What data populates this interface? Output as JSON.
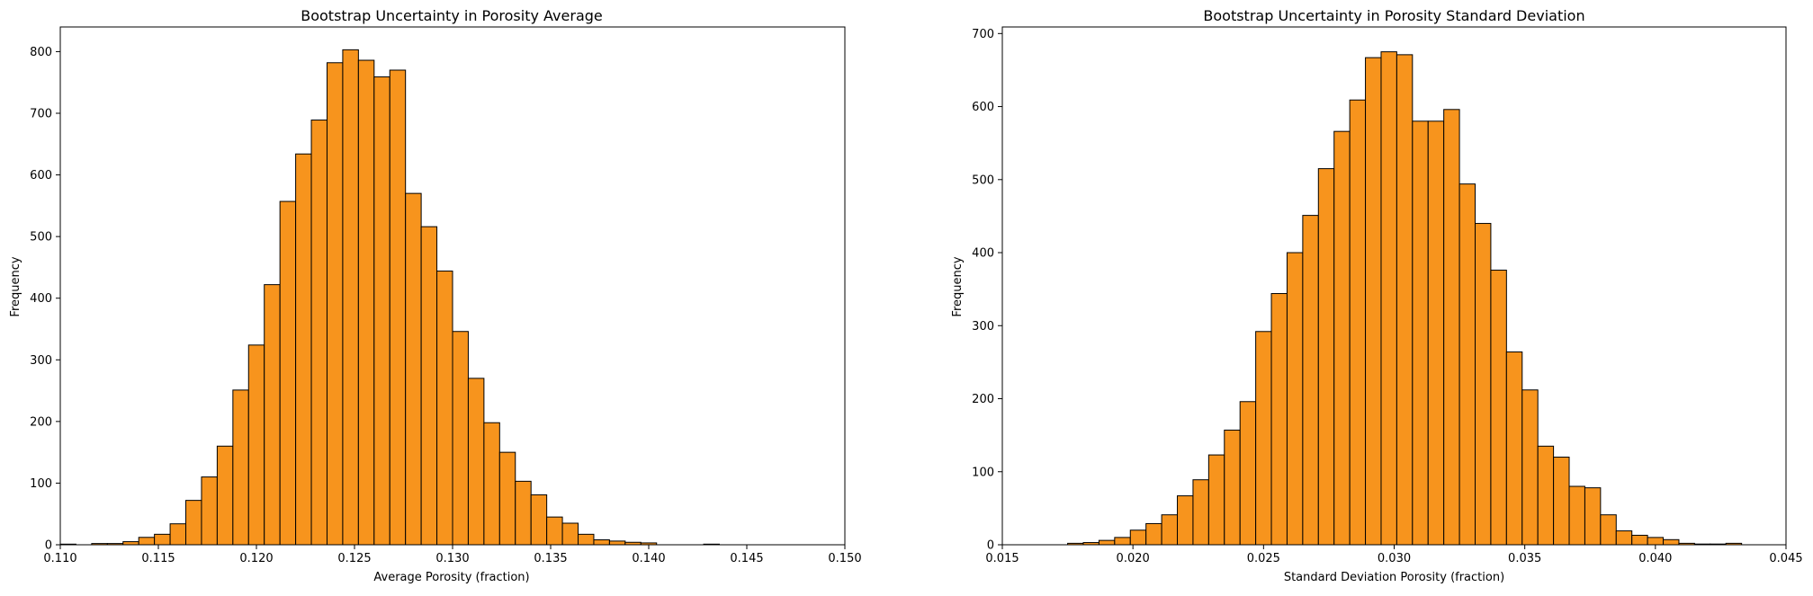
{
  "chart_data": [
    {
      "type": "bar",
      "title": "Bootstrap Uncertainty in Porosity Average",
      "xlabel": "Average Porosity (fraction)",
      "ylabel": "Frequency",
      "xlim": [
        0.11,
        0.15
      ],
      "ylim": [
        0,
        840
      ],
      "xticks": [
        "0.110",
        "0.115",
        "0.120",
        "0.125",
        "0.130",
        "0.135",
        "0.140",
        "0.145",
        "0.150"
      ],
      "yticks": [
        "0",
        "100",
        "200",
        "300",
        "400",
        "500",
        "600",
        "700",
        "800"
      ],
      "bar_color": "#f7941d",
      "edge_color": "#000000",
      "grid": false,
      "legend": "none",
      "bins": [
        {
          "x0": 0.11,
          "x1": 0.1108,
          "count": 1
        },
        {
          "x0": 0.1108,
          "x1": 0.1116,
          "count": 0
        },
        {
          "x0": 0.1116,
          "x1": 0.1124,
          "count": 2
        },
        {
          "x0": 0.1124,
          "x1": 0.1132,
          "count": 2
        },
        {
          "x0": 0.1132,
          "x1": 0.114,
          "count": 5
        },
        {
          "x0": 0.114,
          "x1": 0.1148,
          "count": 12
        },
        {
          "x0": 0.1148,
          "x1": 0.1156,
          "count": 17
        },
        {
          "x0": 0.1156,
          "x1": 0.1164,
          "count": 34
        },
        {
          "x0": 0.1164,
          "x1": 0.1172,
          "count": 72
        },
        {
          "x0": 0.1172,
          "x1": 0.118,
          "count": 110
        },
        {
          "x0": 0.118,
          "x1": 0.1188,
          "count": 160
        },
        {
          "x0": 0.1188,
          "x1": 0.1196,
          "count": 251
        },
        {
          "x0": 0.1196,
          "x1": 0.1204,
          "count": 324
        },
        {
          "x0": 0.1204,
          "x1": 0.1212,
          "count": 422
        },
        {
          "x0": 0.1212,
          "x1": 0.122,
          "count": 557
        },
        {
          "x0": 0.122,
          "x1": 0.1228,
          "count": 634
        },
        {
          "x0": 0.1228,
          "x1": 0.1236,
          "count": 689
        },
        {
          "x0": 0.1236,
          "x1": 0.1244,
          "count": 782
        },
        {
          "x0": 0.1244,
          "x1": 0.1252,
          "count": 803
        },
        {
          "x0": 0.1252,
          "x1": 0.126,
          "count": 786
        },
        {
          "x0": 0.126,
          "x1": 0.1268,
          "count": 759
        },
        {
          "x0": 0.1268,
          "x1": 0.1276,
          "count": 770
        },
        {
          "x0": 0.1276,
          "x1": 0.1284,
          "count": 570
        },
        {
          "x0": 0.1284,
          "x1": 0.1292,
          "count": 516
        },
        {
          "x0": 0.1292,
          "x1": 0.13,
          "count": 444
        },
        {
          "x0": 0.13,
          "x1": 0.1308,
          "count": 346
        },
        {
          "x0": 0.1308,
          "x1": 0.1316,
          "count": 270
        },
        {
          "x0": 0.1316,
          "x1": 0.1324,
          "count": 198
        },
        {
          "x0": 0.1324,
          "x1": 0.1332,
          "count": 150
        },
        {
          "x0": 0.1332,
          "x1": 0.134,
          "count": 103
        },
        {
          "x0": 0.134,
          "x1": 0.1348,
          "count": 81
        },
        {
          "x0": 0.1348,
          "x1": 0.1356,
          "count": 45
        },
        {
          "x0": 0.1356,
          "x1": 0.1364,
          "count": 35
        },
        {
          "x0": 0.1364,
          "x1": 0.1372,
          "count": 17
        },
        {
          "x0": 0.1372,
          "x1": 0.138,
          "count": 8
        },
        {
          "x0": 0.138,
          "x1": 0.1388,
          "count": 6
        },
        {
          "x0": 0.1388,
          "x1": 0.1396,
          "count": 4
        },
        {
          "x0": 0.1396,
          "x1": 0.1404,
          "count": 3
        },
        {
          "x0": 0.1404,
          "x1": 0.1412,
          "count": 0
        },
        {
          "x0": 0.1412,
          "x1": 0.142,
          "count": 0
        },
        {
          "x0": 0.142,
          "x1": 0.1428,
          "count": 0
        },
        {
          "x0": 0.1428,
          "x1": 0.1436,
          "count": 1
        }
      ]
    },
    {
      "type": "bar",
      "title": "Bootstrap Uncertainty in Porosity Standard Deviation",
      "xlabel": "Standard Deviation Porosity (fraction)",
      "ylabel": "Frequency",
      "xlim": [
        0.015,
        0.045
      ],
      "ylim": [
        0,
        709
      ],
      "xticks": [
        "0.015",
        "0.020",
        "0.025",
        "0.030",
        "0.035",
        "0.040",
        "0.045"
      ],
      "yticks": [
        "0",
        "100",
        "200",
        "300",
        "400",
        "500",
        "600",
        "700"
      ],
      "bar_color": "#f7941d",
      "edge_color": "#000000",
      "grid": false,
      "legend": "none",
      "bins": [
        {
          "x0": 0.0175,
          "x1": 0.0181,
          "count": 2
        },
        {
          "x0": 0.0181,
          "x1": 0.0187,
          "count": 3
        },
        {
          "x0": 0.0187,
          "x1": 0.0193,
          "count": 6
        },
        {
          "x0": 0.0193,
          "x1": 0.0199,
          "count": 10
        },
        {
          "x0": 0.0199,
          "x1": 0.0205,
          "count": 20
        },
        {
          "x0": 0.0205,
          "x1": 0.0211,
          "count": 29
        },
        {
          "x0": 0.0211,
          "x1": 0.0217,
          "count": 41
        },
        {
          "x0": 0.0217,
          "x1": 0.0223,
          "count": 67
        },
        {
          "x0": 0.0223,
          "x1": 0.0229,
          "count": 89
        },
        {
          "x0": 0.0229,
          "x1": 0.0235,
          "count": 123
        },
        {
          "x0": 0.0235,
          "x1": 0.0241,
          "count": 157
        },
        {
          "x0": 0.0241,
          "x1": 0.0247,
          "count": 196
        },
        {
          "x0": 0.0247,
          "x1": 0.0253,
          "count": 292
        },
        {
          "x0": 0.0253,
          "x1": 0.0259,
          "count": 344
        },
        {
          "x0": 0.0259,
          "x1": 0.0265,
          "count": 400
        },
        {
          "x0": 0.0265,
          "x1": 0.0271,
          "count": 451
        },
        {
          "x0": 0.0271,
          "x1": 0.0277,
          "count": 515
        },
        {
          "x0": 0.0277,
          "x1": 0.0283,
          "count": 566
        },
        {
          "x0": 0.0283,
          "x1": 0.0289,
          "count": 609
        },
        {
          "x0": 0.0289,
          "x1": 0.0295,
          "count": 667
        },
        {
          "x0": 0.0295,
          "x1": 0.0301,
          "count": 675
        },
        {
          "x0": 0.0301,
          "x1": 0.0307,
          "count": 671
        },
        {
          "x0": 0.0307,
          "x1": 0.0313,
          "count": 580
        },
        {
          "x0": 0.0313,
          "x1": 0.0319,
          "count": 580
        },
        {
          "x0": 0.0319,
          "x1": 0.0325,
          "count": 596
        },
        {
          "x0": 0.0325,
          "x1": 0.0331,
          "count": 494
        },
        {
          "x0": 0.0331,
          "x1": 0.0337,
          "count": 440
        },
        {
          "x0": 0.0337,
          "x1": 0.0343,
          "count": 376
        },
        {
          "x0": 0.0343,
          "x1": 0.0349,
          "count": 264
        },
        {
          "x0": 0.0349,
          "x1": 0.0355,
          "count": 212
        },
        {
          "x0": 0.0355,
          "x1": 0.0361,
          "count": 135
        },
        {
          "x0": 0.0361,
          "x1": 0.0367,
          "count": 120
        },
        {
          "x0": 0.0367,
          "x1": 0.0373,
          "count": 80
        },
        {
          "x0": 0.0373,
          "x1": 0.0379,
          "count": 78
        },
        {
          "x0": 0.0379,
          "x1": 0.0385,
          "count": 41
        },
        {
          "x0": 0.0385,
          "x1": 0.0391,
          "count": 19
        },
        {
          "x0": 0.0391,
          "x1": 0.0397,
          "count": 13
        },
        {
          "x0": 0.0397,
          "x1": 0.0403,
          "count": 10
        },
        {
          "x0": 0.0403,
          "x1": 0.0409,
          "count": 7
        },
        {
          "x0": 0.0409,
          "x1": 0.0415,
          "count": 2
        },
        {
          "x0": 0.0415,
          "x1": 0.0421,
          "count": 1
        },
        {
          "x0": 0.0421,
          "x1": 0.0427,
          "count": 1
        },
        {
          "x0": 0.0427,
          "x1": 0.0433,
          "count": 2
        }
      ]
    }
  ]
}
